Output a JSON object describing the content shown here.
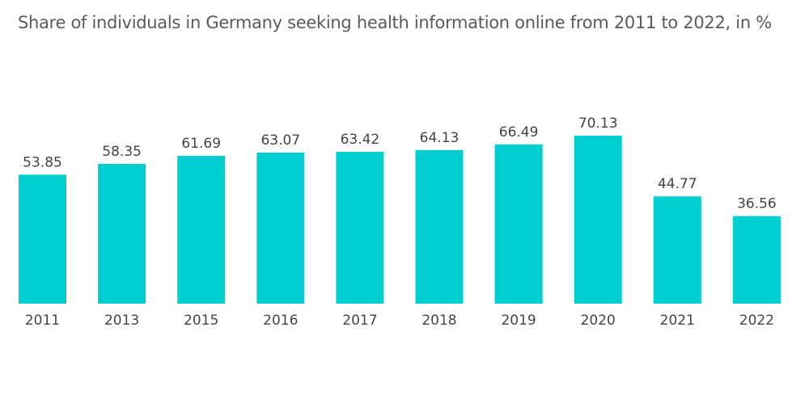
{
  "chart_data": {
    "type": "bar",
    "title": "Share of individuals in Germany seeking health information online from 2011 to 2022, in %",
    "categories": [
      "2011",
      "2013",
      "2015",
      "2016",
      "2017",
      "2018",
      "2019",
      "2020",
      "2021",
      "2022"
    ],
    "values": [
      53.85,
      58.35,
      61.69,
      63.07,
      63.42,
      64.13,
      66.49,
      70.13,
      44.77,
      36.56
    ],
    "value_labels": [
      "53.85",
      "58.35",
      "61.69",
      "63.07",
      "63.42",
      "64.13",
      "66.49",
      "70.13",
      "44.77",
      "36.56"
    ],
    "xlabel": "",
    "ylabel": "",
    "ylim": [
      0,
      70.13
    ],
    "grid": false,
    "legend": "none",
    "bar_color": "#00CED1"
  }
}
